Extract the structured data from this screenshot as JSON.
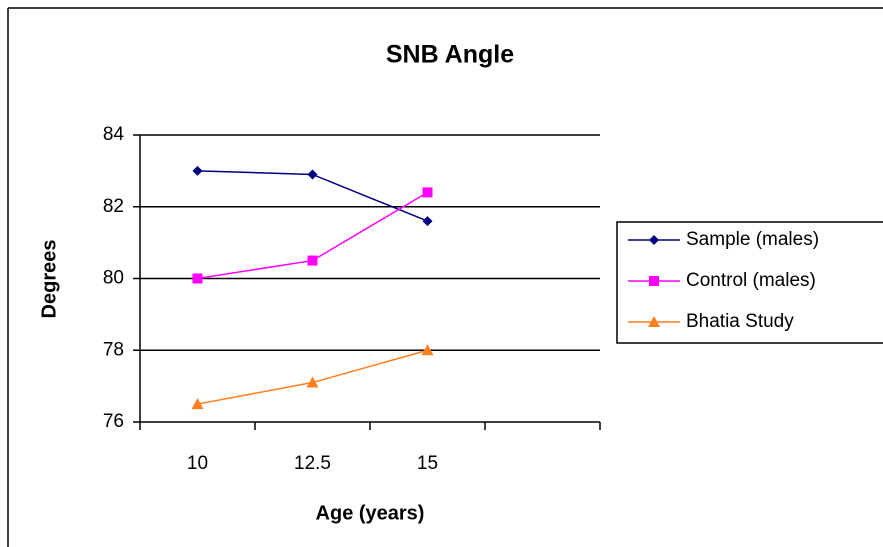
{
  "chart_data": {
    "type": "line",
    "title": "SNB Angle",
    "x_label": "Age (years)",
    "y_label": "Degrees",
    "categories": [
      "10",
      "12.5",
      "15",
      null
    ],
    "series": [
      {
        "name": "Sample (males)",
        "color": "#000080",
        "marker": "diamond",
        "values": [
          83,
          82.9,
          81.6,
          null
        ]
      },
      {
        "name": "Control (males)",
        "color": "#ff00ff",
        "marker": "square",
        "values": [
          80,
          80.5,
          82.4,
          null
        ]
      },
      {
        "name": "Bhatia Study",
        "color": "#ff7f1f",
        "marker": "triangle",
        "values": [
          76.5,
          77.1,
          78,
          null
        ]
      }
    ],
    "ylim": [
      76,
      84
    ],
    "yticks": [
      76,
      78,
      80,
      82,
      84
    ],
    "grid": true,
    "legend": "right"
  }
}
